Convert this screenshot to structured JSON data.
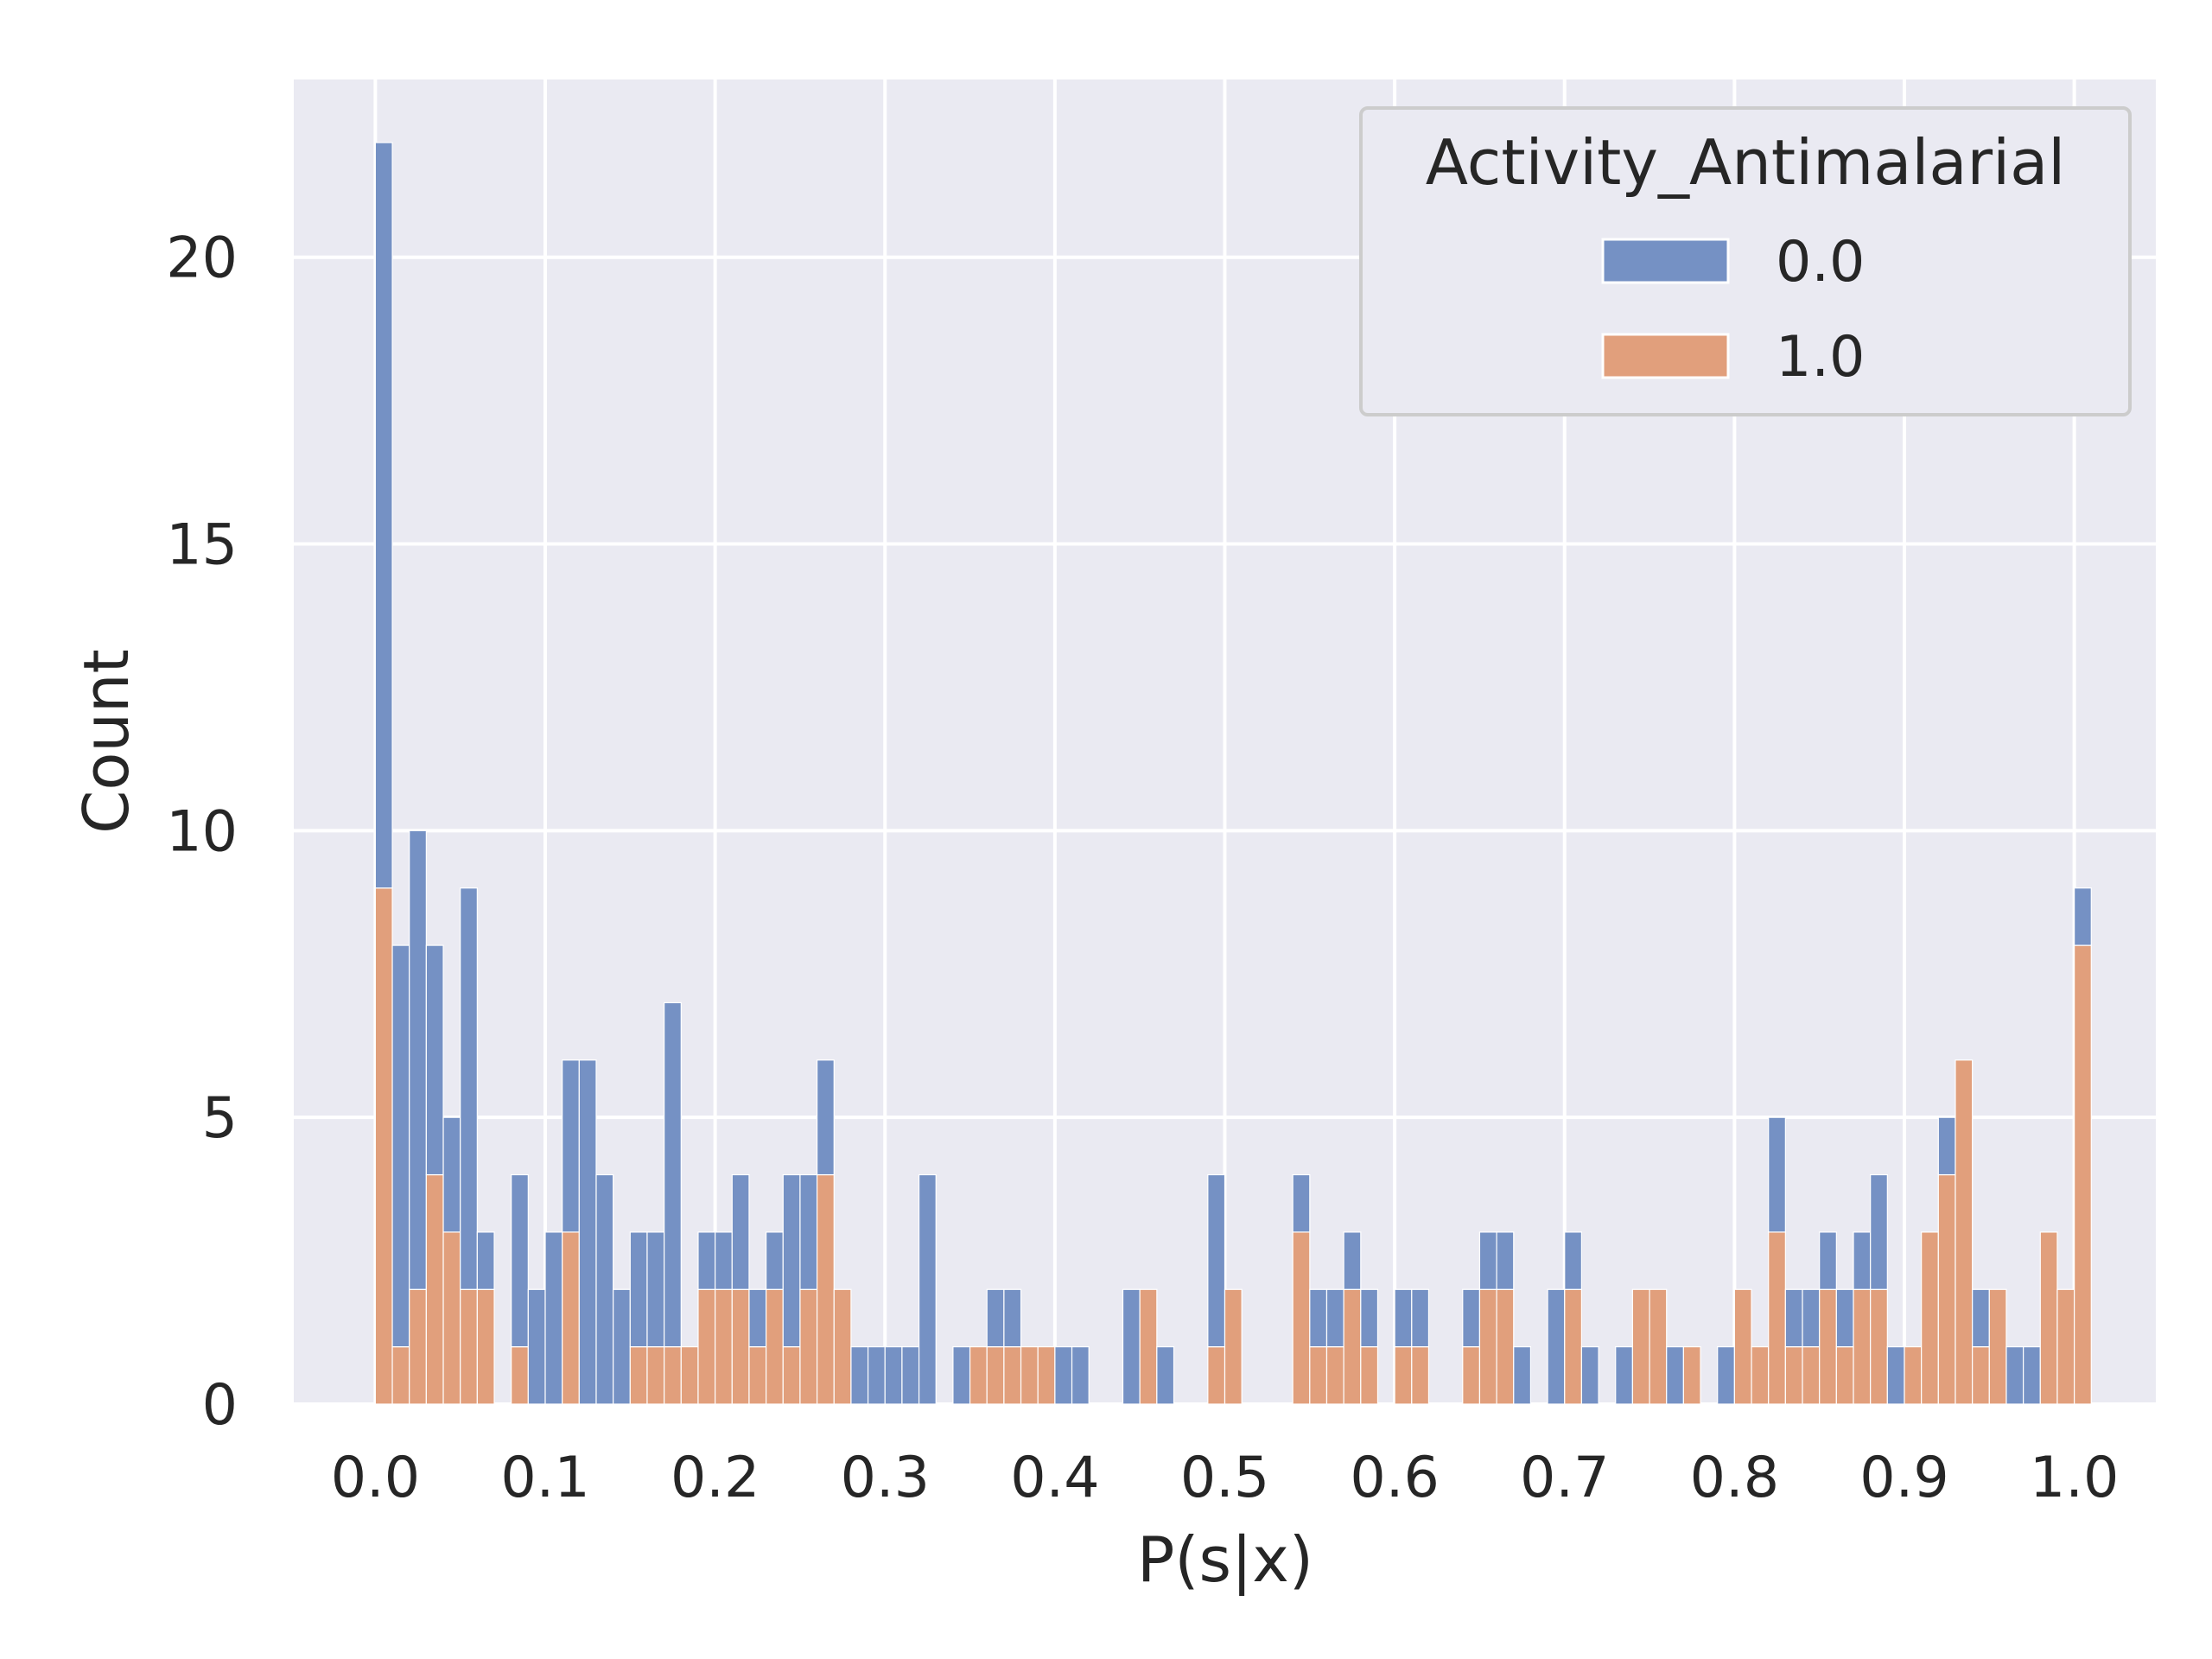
{
  "chart_data": {
    "type": "bar",
    "stacked": true,
    "xlabel": "P(s|x)",
    "ylabel": "Count",
    "xlim": [
      -0.048,
      1.048
    ],
    "ylim": [
      0,
      23.1
    ],
    "bin_start": 0.0,
    "bin_width": 0.01,
    "xticks": [
      0.0,
      0.1,
      0.2,
      0.3,
      0.4,
      0.5,
      0.6,
      0.7,
      0.8,
      0.9,
      1.0
    ],
    "xtick_labels": [
      "0.0",
      "0.1",
      "0.2",
      "0.3",
      "0.4",
      "0.5",
      "0.6",
      "0.7",
      "0.8",
      "0.9",
      "1.0"
    ],
    "yticks": [
      0,
      5,
      10,
      15,
      20
    ],
    "ytick_labels": [
      "0",
      "5",
      "10",
      "15",
      "20"
    ],
    "grid": true,
    "legend": {
      "title": "Activity_Antimalarial",
      "placement": "top-right",
      "entries": [
        {
          "label": "0.0",
          "color": "#7591c4"
        },
        {
          "label": "1.0",
          "color": "#e19f7c"
        }
      ]
    },
    "series": [
      {
        "name": "0.0",
        "color": "#7591c4",
        "values": [
          13,
          7,
          8,
          4,
          2,
          7,
          1,
          0,
          3,
          2,
          3,
          3,
          6,
          4,
          2,
          2,
          2,
          6,
          0,
          1,
          1,
          2,
          1,
          1,
          3,
          2,
          2,
          0,
          1,
          1,
          1,
          1,
          4,
          0,
          1,
          0,
          1,
          1,
          0,
          0,
          1,
          1,
          0,
          0,
          2,
          0,
          1,
          0,
          0,
          3,
          0,
          0,
          0,
          0,
          1,
          1,
          1,
          1,
          1,
          0,
          1,
          1,
          0,
          0,
          1,
          1,
          1,
          1,
          0,
          2,
          1,
          1,
          0,
          1,
          0,
          0,
          1,
          0,
          0,
          1,
          0,
          0,
          2,
          1,
          1,
          1,
          1,
          1,
          2,
          1,
          0,
          0,
          1,
          0,
          1,
          0,
          1,
          1,
          0,
          0,
          1
        ]
      },
      {
        "name": "1.0",
        "color": "#e19f7c",
        "values": [
          9,
          1,
          2,
          4,
          3,
          2,
          2,
          0,
          1,
          0,
          0,
          3,
          0,
          0,
          0,
          1,
          1,
          1,
          1,
          2,
          2,
          2,
          1,
          2,
          1,
          2,
          4,
          2,
          0,
          0,
          0,
          0,
          0,
          0,
          0,
          1,
          1,
          1,
          1,
          1,
          0,
          0,
          0,
          0,
          0,
          2,
          0,
          0,
          0,
          1,
          2,
          0,
          0,
          0,
          3,
          1,
          1,
          2,
          1,
          0,
          1,
          1,
          0,
          0,
          1,
          2,
          2,
          0,
          0,
          0,
          2,
          0,
          0,
          0,
          2,
          2,
          0,
          1,
          0,
          0,
          2,
          1,
          3,
          1,
          1,
          2,
          1,
          2,
          2,
          0,
          1,
          3,
          4,
          6,
          1,
          2,
          0,
          0,
          3,
          2,
          8
        ]
      }
    ]
  }
}
